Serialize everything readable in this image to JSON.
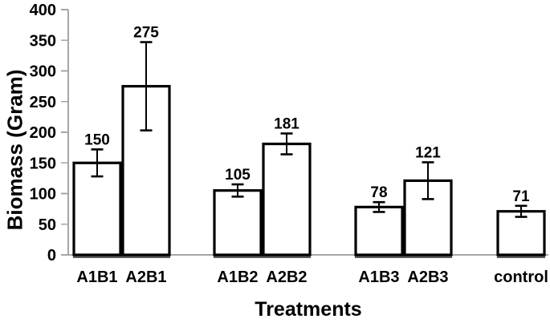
{
  "chart_data": {
    "type": "bar",
    "title": "",
    "xlabel": "Treatments",
    "ylabel": "Biomass (Gram)",
    "ylim": [
      0,
      400
    ],
    "ytick_step": 50,
    "yticks": [
      0,
      50,
      100,
      150,
      200,
      250,
      300,
      350,
      400
    ],
    "grid": false,
    "legend": null,
    "categories": [
      "A1B1",
      "A2B1",
      "A1B2",
      "A2B2",
      "A1B3",
      "A2B3",
      "control"
    ],
    "values": [
      150,
      275,
      105,
      181,
      78,
      121,
      71
    ],
    "error_bars": [
      22,
      72,
      10,
      17,
      8,
      30,
      9
    ],
    "data_labels": [
      "150",
      "275",
      "105",
      "181",
      "78",
      "121",
      "71"
    ],
    "groups": [
      [
        "A1B1",
        "A2B1"
      ],
      [
        "A1B2",
        "A2B2"
      ],
      [
        "A1B3",
        "A2B3"
      ],
      [
        "control"
      ]
    ],
    "colors": {
      "background": "#ffffff",
      "bar_fill": "#ffffff",
      "bar_stroke": "#000000",
      "error_bar": "#000000",
      "axis_line": "#a6a6a6",
      "bar_shadow": "#595959",
      "text": "#000000"
    }
  }
}
